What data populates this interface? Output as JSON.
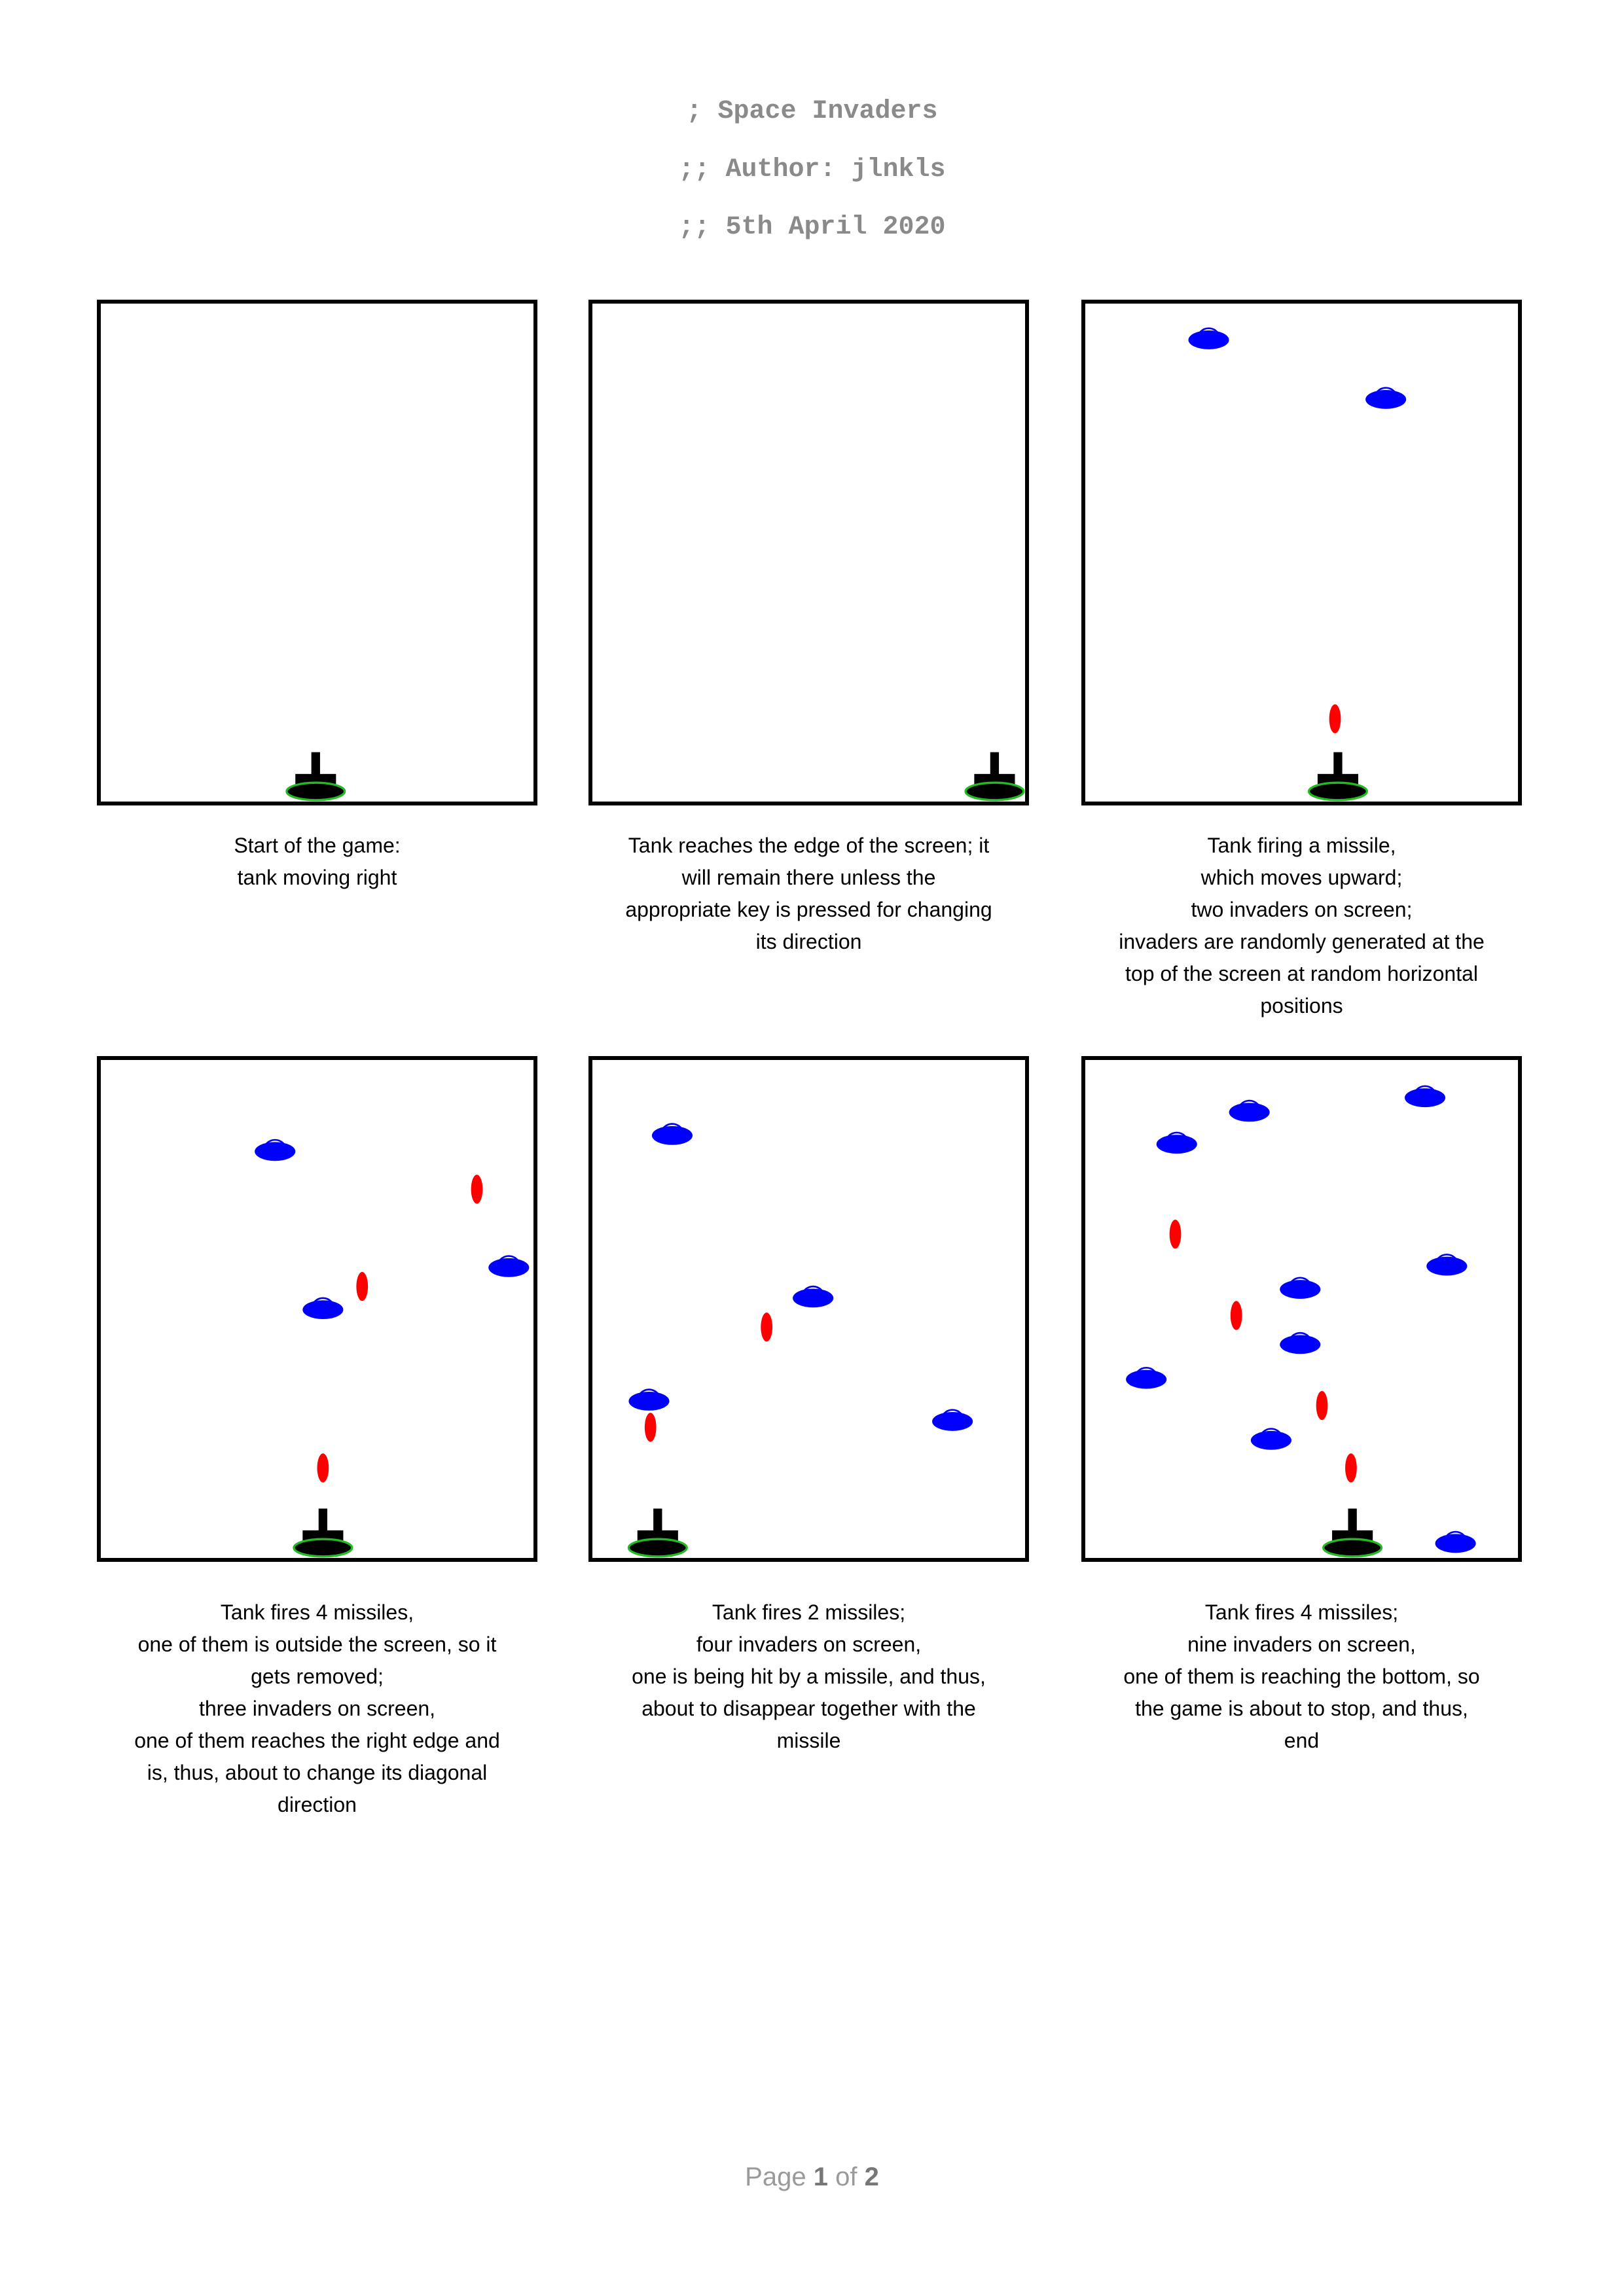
{
  "header": {
    "lines": [
      "; Space Invaders",
      ";; Author: jlnkls",
      ";; 5th April 2020"
    ]
  },
  "panels": [
    {
      "caption": [
        "Start of the game:",
        "tank moving right"
      ]
    },
    {
      "caption": [
        "Tank reaches the edge of the screen; it",
        "will remain there unless the",
        "appropriate key is pressed for changing",
        "its direction"
      ]
    },
    {
      "caption": [
        "Tank firing a missile,",
        "which moves upward;",
        "two invaders on screen;",
        "invaders are randomly generated at the",
        "top of the screen at random horizontal",
        "positions"
      ]
    },
    {
      "caption": [
        "Tank fires 4 missiles,",
        "one of them is outside the screen, so it",
        "gets removed;",
        "three invaders on screen,",
        "one of them reaches the right edge and",
        "is, thus, about to change its diagonal",
        "direction"
      ]
    },
    {
      "caption": [
        "Tank fires 2 missiles;",
        "four invaders on screen,",
        "one is being hit by a missile, and thus,",
        "about to disappear together with the",
        "missile"
      ]
    },
    {
      "caption": [
        "Tank fires 4 missiles;",
        "nine invaders on screen,",
        "one of them is reaching the bottom, so",
        "the game is about to stop, and thus,",
        "end"
      ]
    }
  ],
  "footer": {
    "page_word": "Page",
    "page": "1",
    "of_word": "of",
    "total": "2"
  }
}
